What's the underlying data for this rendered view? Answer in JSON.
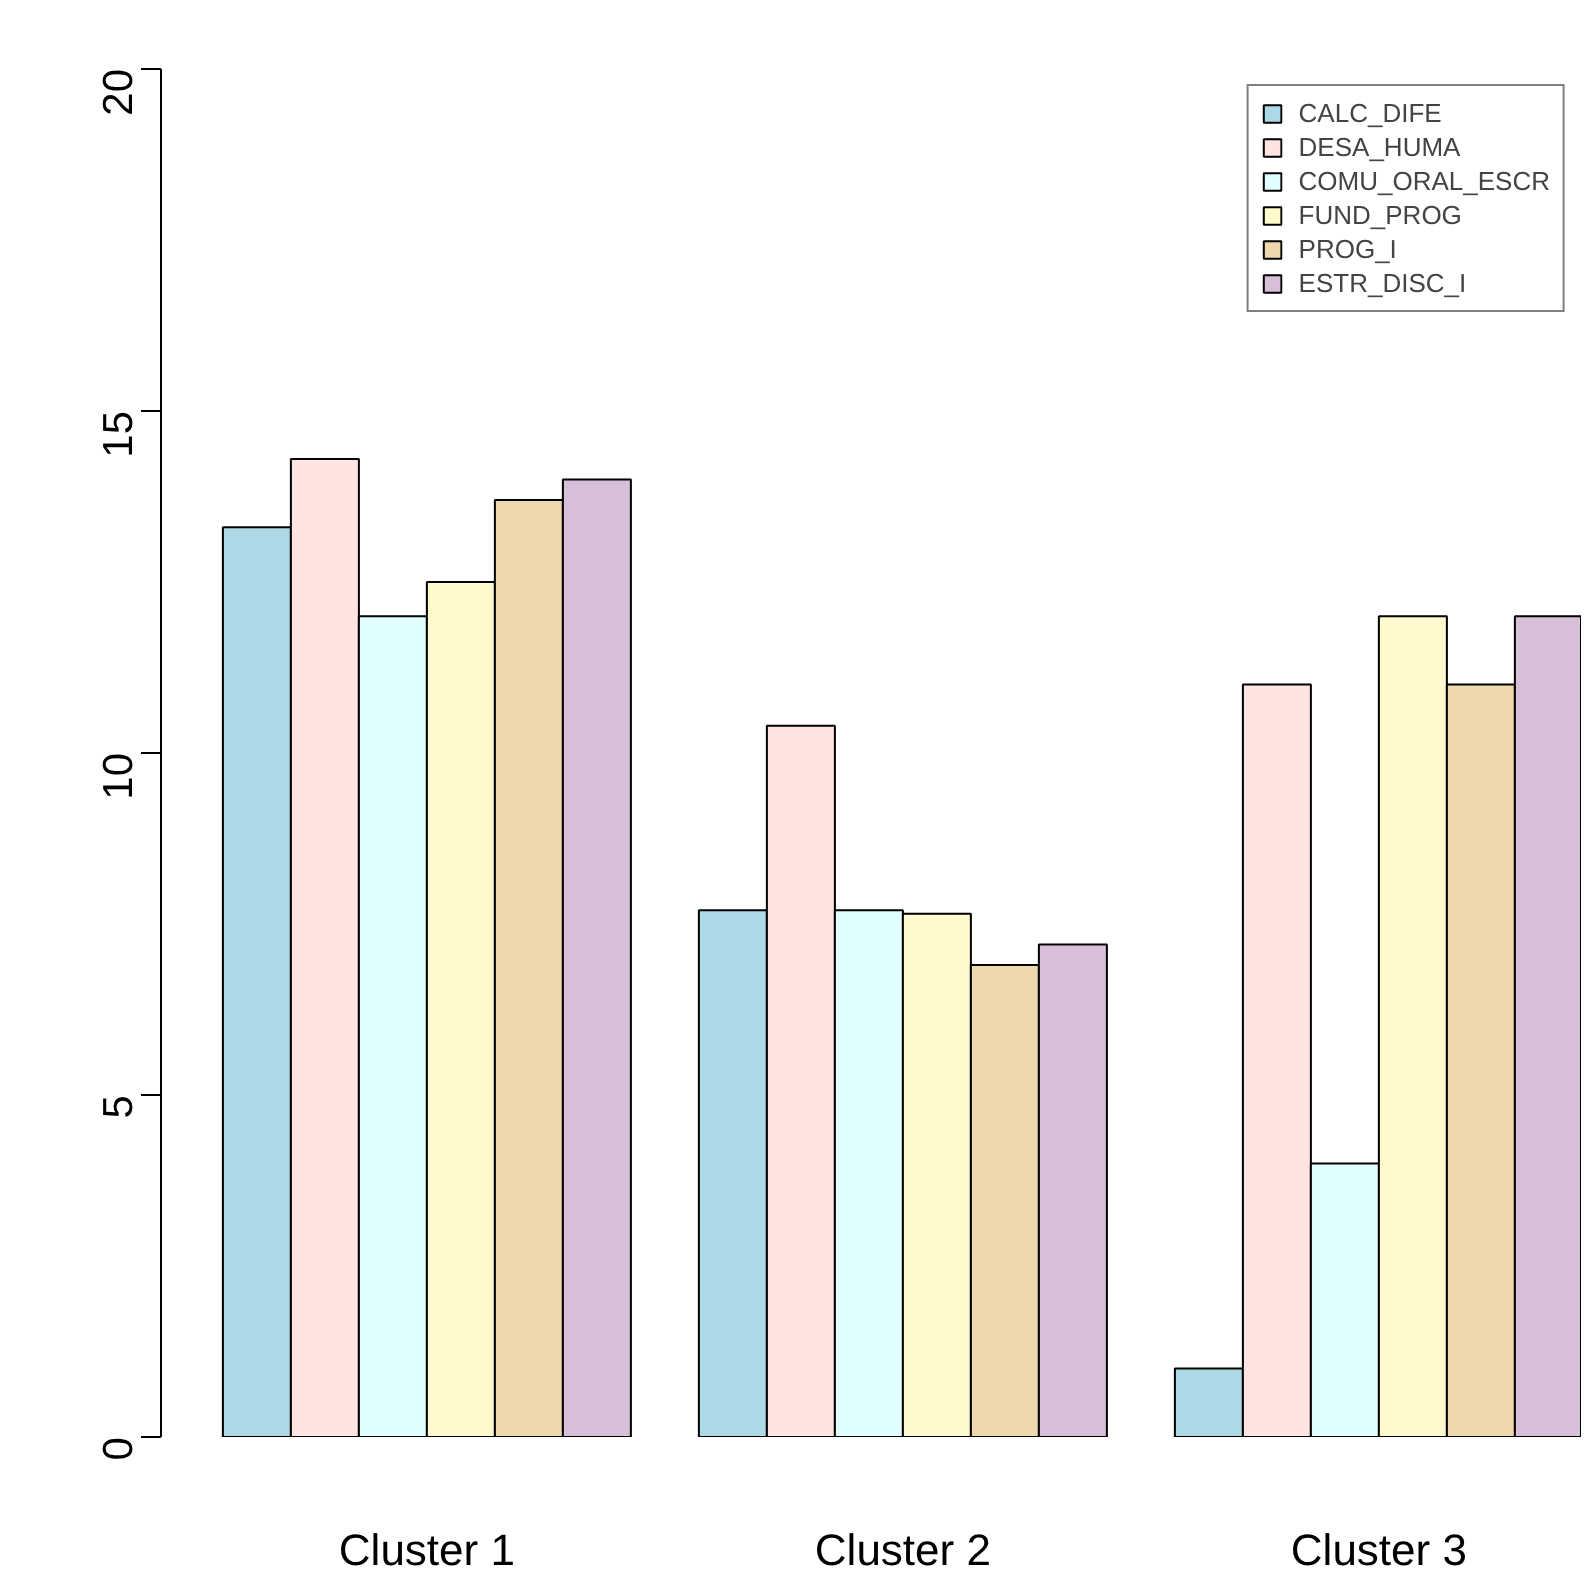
{
  "chart_data": {
    "type": "bar",
    "categories": [
      "Cluster 1",
      "Cluster 2",
      "Cluster 3"
    ],
    "series": [
      {
        "name": "CALC_DIFE",
        "color": "#add8e6",
        "values": [
          13.3,
          7.7,
          1.0
        ]
      },
      {
        "name": "DESA_HUMA",
        "color": "#ffe4e1",
        "values": [
          14.3,
          10.4,
          11.0
        ]
      },
      {
        "name": "COMU_ORAL_ESCR",
        "color": "#e0ffff",
        "values": [
          12.0,
          7.7,
          4.0
        ]
      },
      {
        "name": "FUND_PROG",
        "color": "#fffacd",
        "values": [
          12.5,
          7.65,
          12.0
        ]
      },
      {
        "name": "PROG_I",
        "color": "#eed8ae",
        "values": [
          13.7,
          6.9,
          11.0
        ]
      },
      {
        "name": "ESTR_DISC_I",
        "color": "#d8bfd8",
        "values": [
          14.0,
          7.2,
          12.0
        ]
      }
    ],
    "ylim": [
      0,
      20
    ],
    "yticks": [
      0,
      5,
      10,
      15,
      20
    ],
    "grid": false,
    "legend": "top right"
  }
}
